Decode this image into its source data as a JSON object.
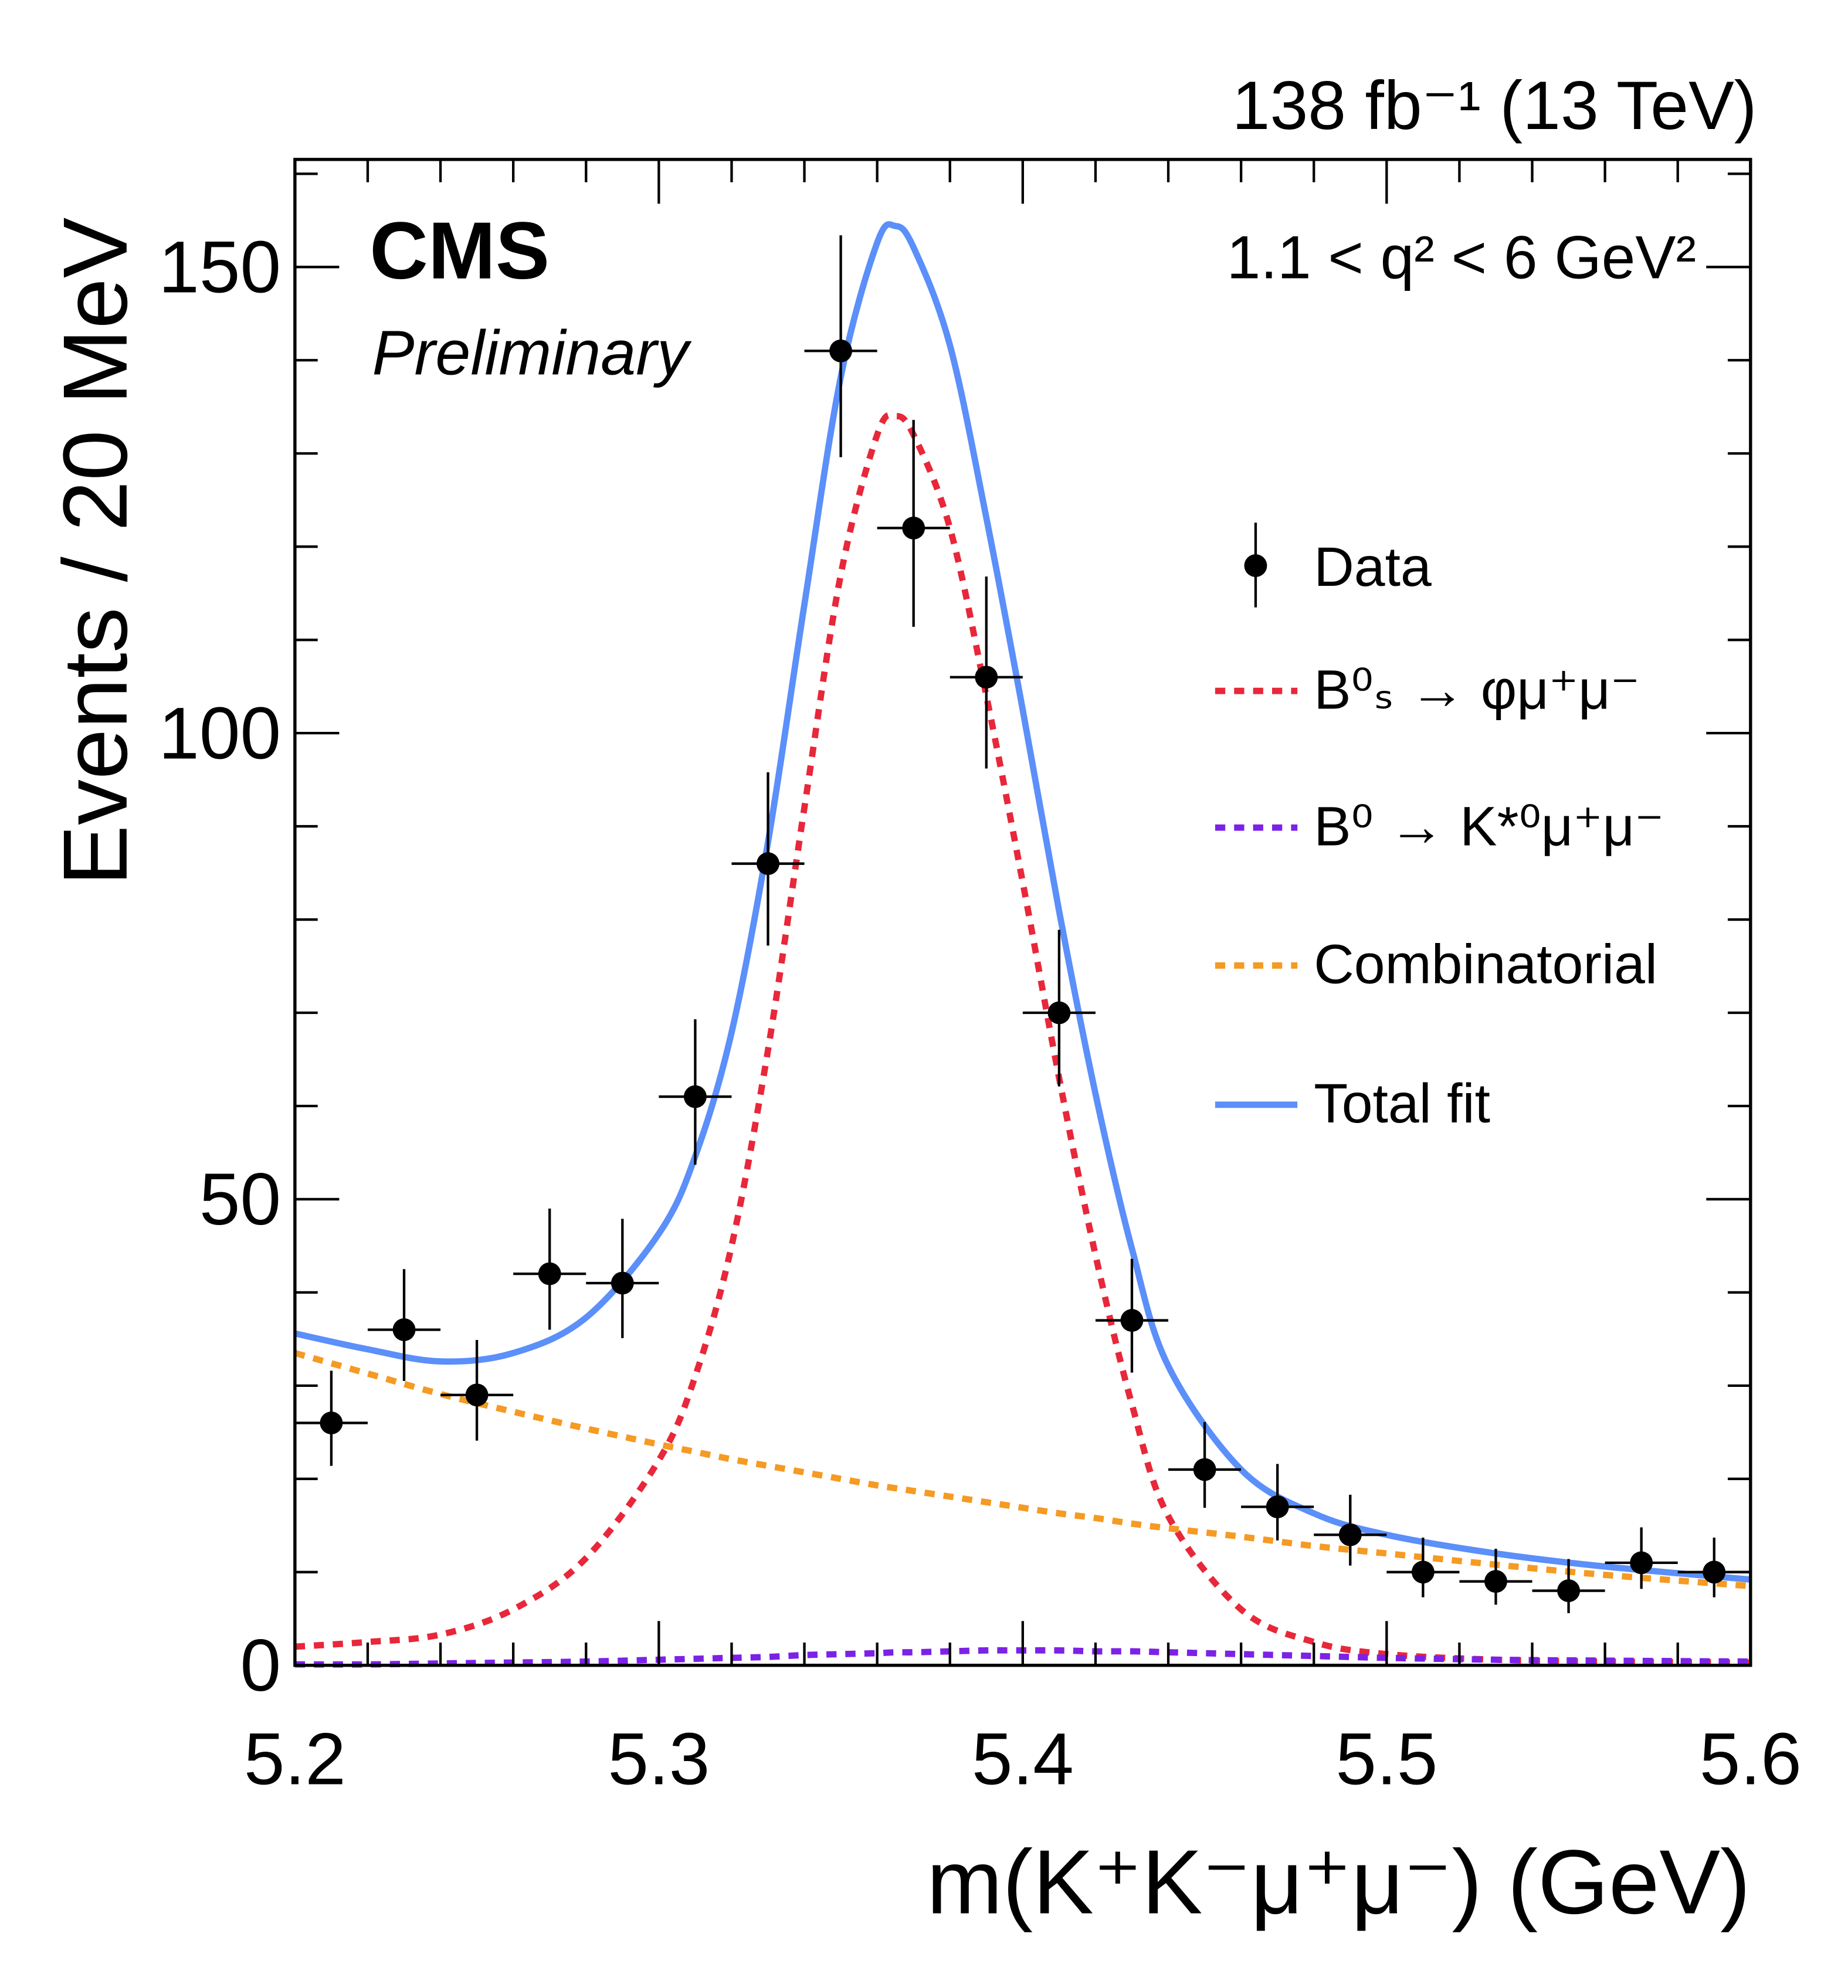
{
  "chart_data": {
    "type": "scatter",
    "experiment": "CMS",
    "status": "Preliminary",
    "lumi": "138 fb⁻¹ (13 TeV)",
    "selection": "1.1 < q² < 6 GeV²",
    "xlabel": "m(K⁺K⁻μ⁺μ⁻) (GeV)",
    "ylabel": "Events / 20 MeV",
    "xlim": [
      5.2,
      5.6
    ],
    "ylim": [
      0,
      162
    ],
    "xticks": [
      "5.2",
      "5.3",
      "5.4",
      "5.5",
      "5.6"
    ],
    "yticks": [
      "0",
      "50",
      "100",
      "150"
    ],
    "legend_position": "right",
    "data": {
      "name": "Data",
      "color": "#000000",
      "x": [
        5.21,
        5.23,
        5.25,
        5.27,
        5.29,
        5.31,
        5.33,
        5.35,
        5.37,
        5.39,
        5.41,
        5.43,
        5.45,
        5.47,
        5.49,
        5.51,
        5.53,
        5.55,
        5.57,
        5.59
      ],
      "y": [
        26,
        36,
        29,
        42,
        41,
        61,
        86,
        141,
        122,
        106,
        70,
        37,
        21,
        17,
        14,
        10,
        9,
        8,
        11,
        10
      ],
      "yerr_high": [
        5.6,
        6.5,
        5.9,
        7.0,
        6.9,
        8.3,
        9.8,
        12.4,
        11.6,
        10.8,
        8.9,
        6.6,
        5.1,
        4.6,
        4.3,
        3.7,
        3.5,
        3.4,
        3.8,
        3.7
      ],
      "yerr_low": [
        4.6,
        5.5,
        4.9,
        6.0,
        5.9,
        7.3,
        8.8,
        11.4,
        10.6,
        9.8,
        7.9,
        5.6,
        4.1,
        3.6,
        3.3,
        2.7,
        2.5,
        2.4,
        2.8,
        2.7
      ],
      "xerr": 0.01
    },
    "curves_x": [
      5.2,
      5.22,
      5.24,
      5.26,
      5.28,
      5.3,
      5.31,
      5.32,
      5.33,
      5.34,
      5.35,
      5.36,
      5.365,
      5.37,
      5.38,
      5.39,
      5.4,
      5.41,
      5.42,
      5.43,
      5.44,
      5.46,
      5.48,
      5.5,
      5.53,
      5.56,
      5.6
    ],
    "series": [
      {
        "name": "B⁰ₛ → φμ⁺μ⁻",
        "color": "#e8273a",
        "style": "dotted",
        "values": [
          2,
          2.5,
          3.3,
          6,
          11.5,
          22,
          31,
          45,
          66,
          92,
          117,
          132,
          134,
          132,
          122,
          104,
          84,
          63,
          44,
          28,
          16,
          6,
          2.5,
          1.2,
          0.6,
          0.4,
          0.3
        ]
      },
      {
        "name": "B⁰ → K*⁰μ⁺μ⁻",
        "color": "#7b22e6",
        "style": "dotted",
        "values": [
          0.1,
          0.1,
          0.2,
          0.3,
          0.4,
          0.6,
          0.7,
          0.8,
          0.9,
          1.1,
          1.2,
          1.3,
          1.4,
          1.4,
          1.5,
          1.6,
          1.6,
          1.6,
          1.5,
          1.5,
          1.4,
          1.2,
          1.0,
          0.8,
          0.6,
          0.5,
          0.4
        ]
      },
      {
        "name": "Combinatorial",
        "color": "#f59a23",
        "style": "dotted",
        "values": [
          33.5,
          31.3,
          29.1,
          27.2,
          25.4,
          23.7,
          22.9,
          22.1,
          21.4,
          20.7,
          20.0,
          19.3,
          19.0,
          18.7,
          18.1,
          17.5,
          16.9,
          16.3,
          15.8,
          15.2,
          14.7,
          13.8,
          12.8,
          12.0,
          10.8,
          9.7,
          8.5
        ]
      },
      {
        "name": "Total fit",
        "color": "#5b8ff9",
        "style": "solid",
        "values": [
          35.6,
          33.9,
          32.6,
          33.5,
          37.3,
          46.3,
          54.6,
          67.9,
          88.3,
          113.8,
          138.2,
          152.6,
          154.4,
          152.1,
          141.6,
          123.1,
          102.5,
          80.9,
          61.3,
          44.7,
          32.1,
          21.0,
          16.3,
          14.0,
          12.0,
          10.6,
          9.2
        ]
      }
    ]
  }
}
